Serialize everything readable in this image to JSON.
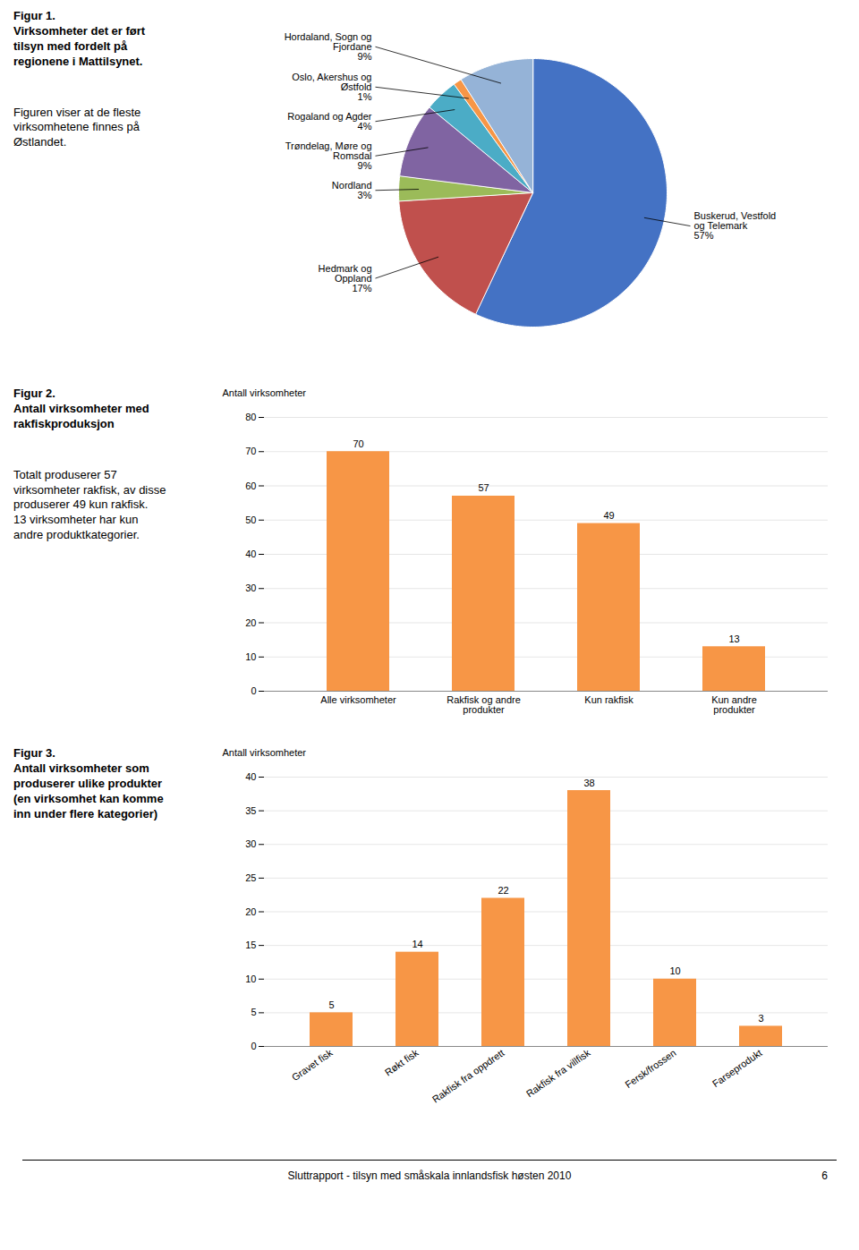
{
  "chart_data": [
    {
      "type": "pie",
      "title": "Figur 1.\nVirksomheter det er ført\ntilsyn med fordelt på\nregionene i Mattilsynet.",
      "subtitle": "Figuren viser at de fleste\nvirksomhetene finnes på\nØstlandet.",
      "categories": [
        "Buskerud, Vestfold\nog Telemark",
        "Hedmark og\nOppland",
        "Nordland",
        "Trøndelag, Møre og\nRomsdal",
        "Rogaland og Agder",
        "Oslo, Akershus og\nØstfold",
        "Hordaland, Sogn og\nFjordane"
      ],
      "values": [
        57,
        17,
        3,
        9,
        4,
        1,
        9
      ],
      "value_labels": [
        "57%",
        "17%",
        "3%",
        "9%",
        "4%",
        "1%",
        "9%"
      ],
      "colors": [
        "#4472C4",
        "#C0504D",
        "#9BBB59",
        "#8064A2",
        "#4BACC6",
        "#F79646",
        "#95B3D7"
      ],
      "data_labels": true
    },
    {
      "type": "bar",
      "title": "Figur 2.\nAntall virksomheter med\nrakfiskproduksjon",
      "subtitle": "Totalt produserer 57\nvirksomheter rakfisk, av disse\nproduserer 49 kun rakfisk.\n13 virksomheter har kun\nandre produktkategorier.",
      "categories": [
        "Alle virksomheter",
        "Rakfisk og andre\nprodukter",
        "Kun rakfisk",
        "Kun andre\nprodukter"
      ],
      "values": [
        70,
        57,
        49,
        13
      ],
      "color": "#F79646",
      "ylabel": "Antall virksomheter",
      "ylim": [
        0,
        80
      ],
      "yticks": [
        0,
        10,
        20,
        30,
        40,
        50,
        60,
        70,
        80
      ],
      "grid": true,
      "data_labels": true
    },
    {
      "type": "bar",
      "title": "Figur 3.\nAntall virksomheter som\nproduserer ulike produkter\n(en virksomhet kan komme\ninn under flere kategorier)",
      "categories": [
        "Gravet fisk",
        "Røkt fisk",
        "Rakfisk fra oppdrett",
        "Rakfisk fra villfisk",
        "Fersk/frossen",
        "Farseprodukt"
      ],
      "values": [
        5,
        14,
        22,
        38,
        10,
        3
      ],
      "color": "#F79646",
      "ylabel": "Antall virksomheter",
      "ylim": [
        0,
        40
      ],
      "yticks": [
        0,
        5,
        10,
        15,
        20,
        25,
        30,
        35,
        40
      ],
      "grid": true,
      "data_labels": true
    }
  ],
  "footer": "Sluttrapport - tilsyn med småskala innlandsfisk høsten 2010",
  "page_number": "6"
}
